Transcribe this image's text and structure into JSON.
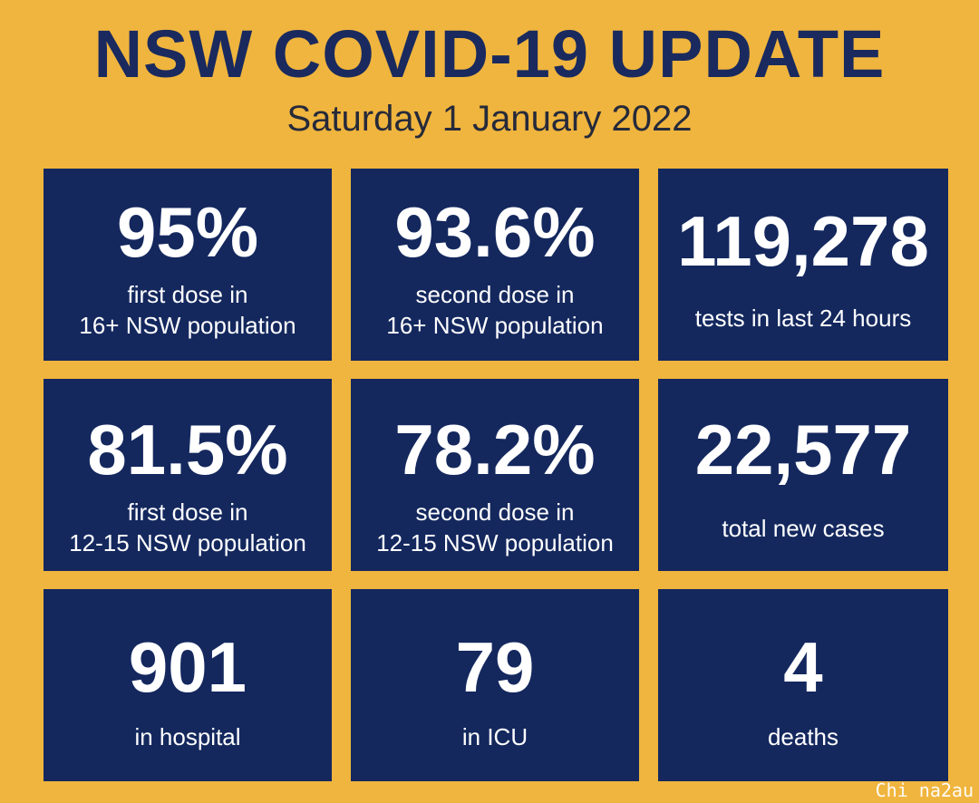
{
  "header": {
    "title": "NSW COVID-19 UPDATE",
    "date": "Saturday 1 January 2022"
  },
  "tiles": [
    {
      "value": "95%",
      "label_line1": "first dose in",
      "label_line2": "16+ NSW population"
    },
    {
      "value": "93.6%",
      "label_line1": "second dose in",
      "label_line2": "16+ NSW population"
    },
    {
      "value": "119,278",
      "label_line1": "tests in last 24 hours",
      "label_line2": ""
    },
    {
      "value": "81.5%",
      "label_line1": "first dose in",
      "label_line2": "12-15 NSW population"
    },
    {
      "value": "78.2%",
      "label_line1": "second dose in",
      "label_line2": "12-15 NSW population"
    },
    {
      "value": "22,577",
      "label_line1": "total new cases",
      "label_line2": ""
    },
    {
      "value": "901",
      "label_line1": "in hospital",
      "label_line2": ""
    },
    {
      "value": "79",
      "label_line1": "in ICU",
      "label_line2": ""
    },
    {
      "value": "4",
      "label_line1": "deaths",
      "label_line2": ""
    }
  ],
  "watermark": "Chi na2au",
  "colors": {
    "background": "#f0b53e",
    "tile": "#14285e",
    "title": "#1a2a5e"
  }
}
